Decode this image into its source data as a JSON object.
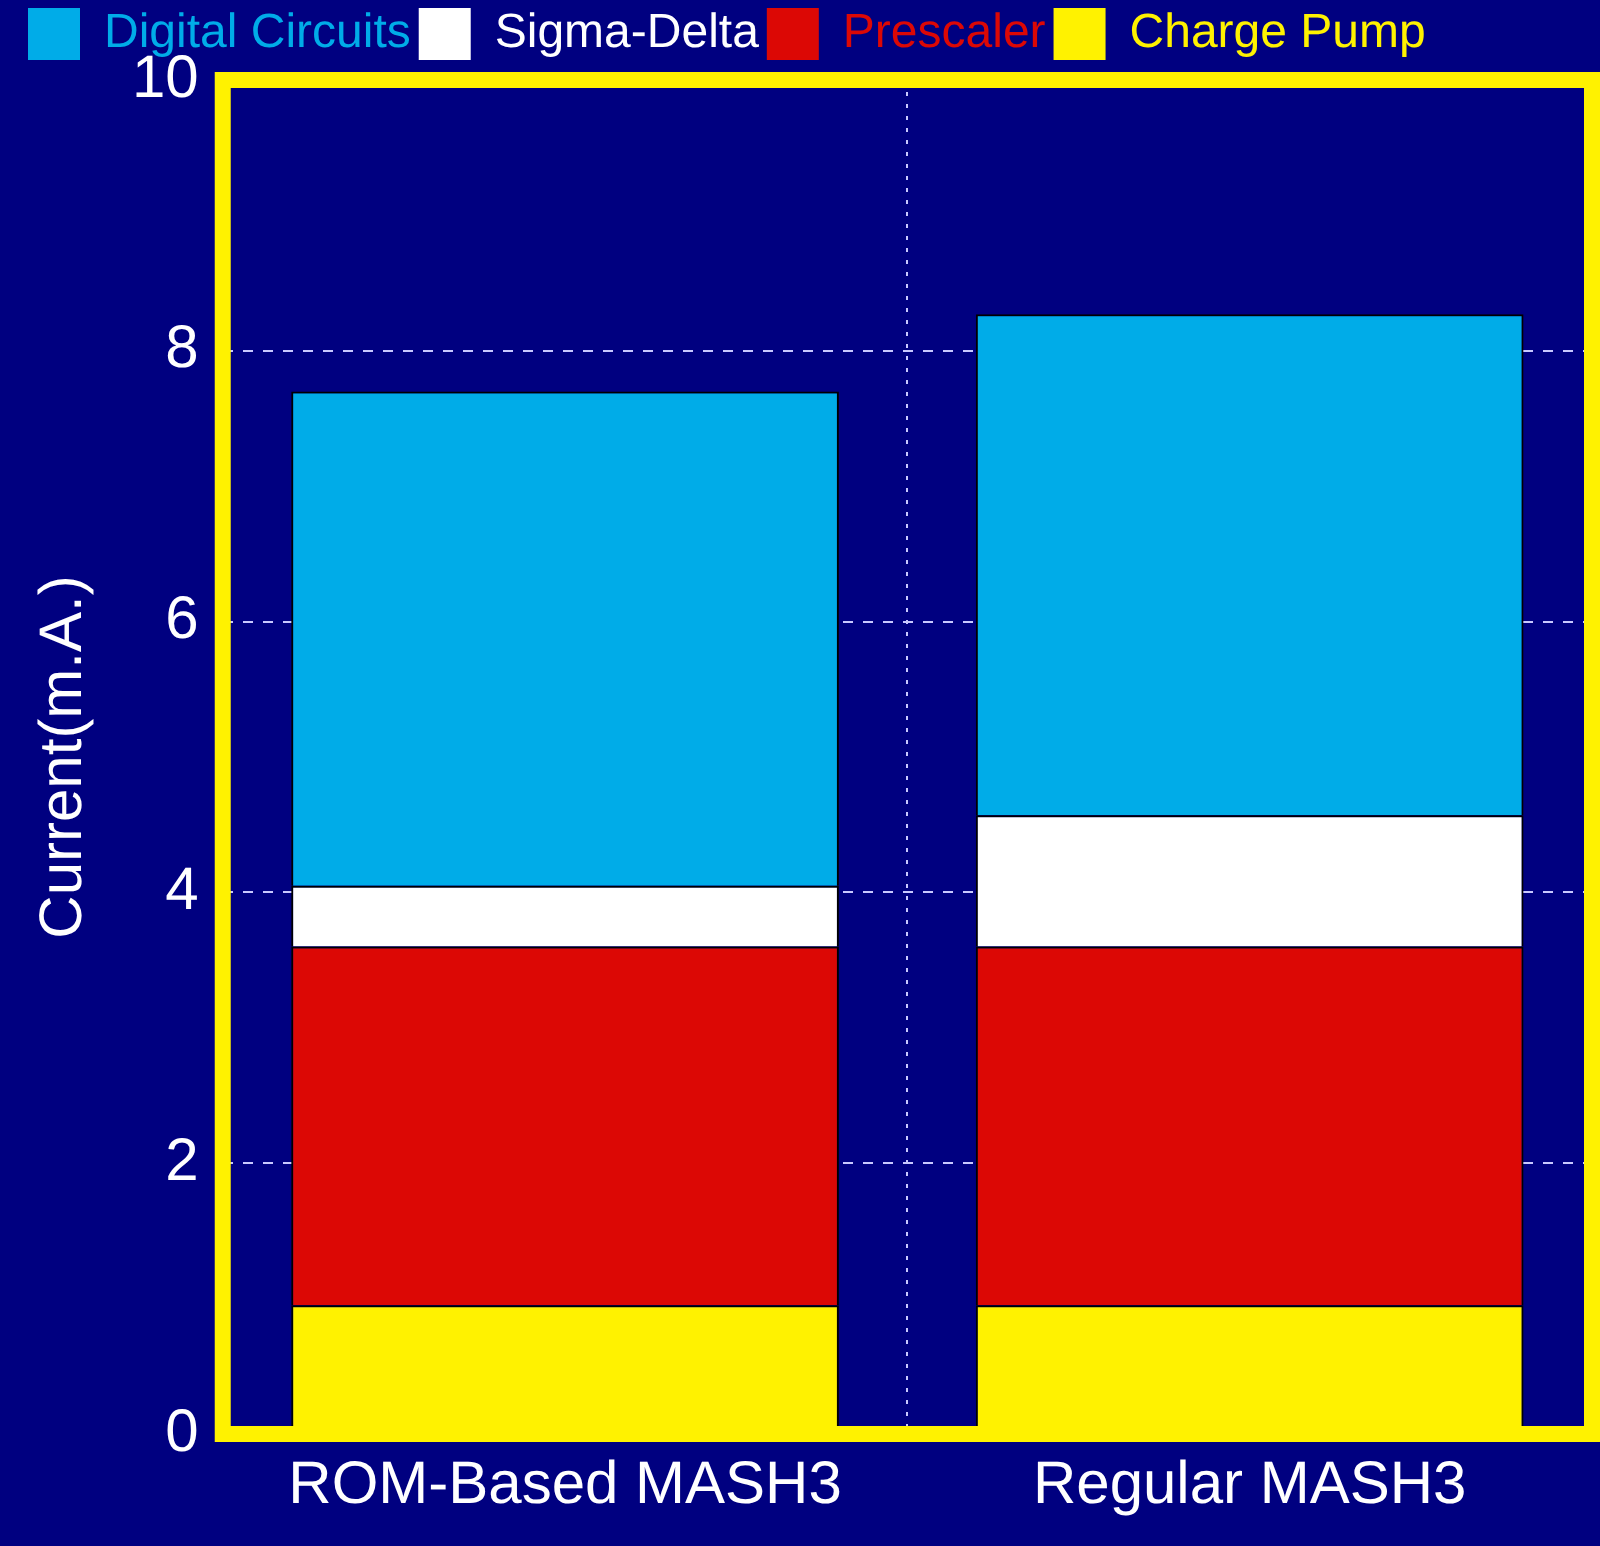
{
  "chart_data": {
    "type": "bar",
    "stacked": true,
    "ylabel": "Current(m.A.)",
    "categories": [
      "ROM-Based MASH3",
      "Regular MASH3"
    ],
    "series": [
      {
        "name": "Charge Pump",
        "color": "#fff200",
        "values": [
          0.95,
          0.95
        ]
      },
      {
        "name": "Prescaler",
        "color": "#dc0805",
        "values": [
          2.65,
          2.65
        ]
      },
      {
        "name": "Sigma-Delta",
        "color": "#ffffff",
        "values": [
          0.45,
          0.97
        ]
      },
      {
        "name": "Digital Circuits",
        "color": "#00ace8",
        "values": [
          3.65,
          3.7
        ]
      }
    ],
    "ylim": [
      0,
      10
    ],
    "yticks": [
      0,
      2,
      4,
      6,
      8,
      10
    ],
    "grid": true,
    "legend": "top left"
  }
}
